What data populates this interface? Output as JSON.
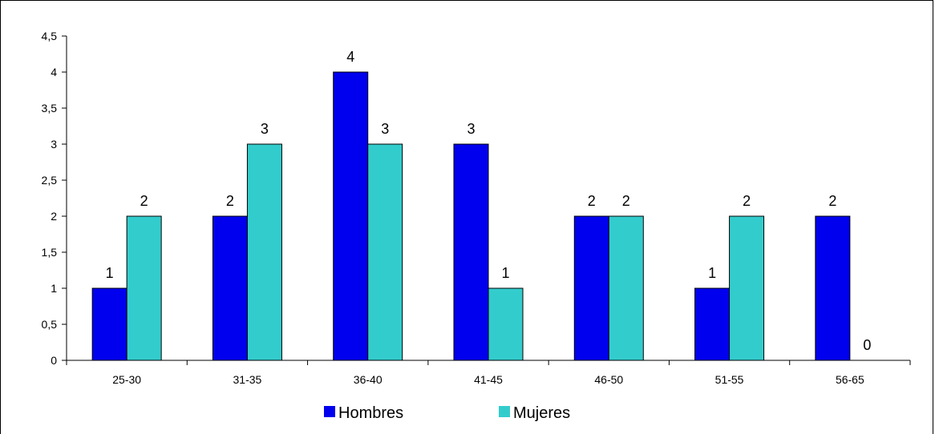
{
  "chart_data": {
    "type": "bar",
    "title": "",
    "xlabel": "",
    "ylabel": "",
    "categories": [
      "25-30",
      "31-35",
      "36-40",
      "41-45",
      "46-50",
      "51-55",
      "56-65"
    ],
    "series": [
      {
        "name": "Hombres",
        "values": [
          1,
          2,
          4,
          3,
          2,
          1,
          2
        ],
        "color": "#0000EE"
      },
      {
        "name": "Mujeres",
        "values": [
          2,
          3,
          3,
          1,
          2,
          2,
          0
        ],
        "color": "#33CCCC"
      }
    ],
    "ylim": [
      0,
      4.5
    ],
    "yticks": [
      "0",
      "0,5",
      "1",
      "1,5",
      "2",
      "2,5",
      "3",
      "3,5",
      "4",
      "4,5"
    ],
    "grid": false,
    "legend_position": "bottom"
  }
}
